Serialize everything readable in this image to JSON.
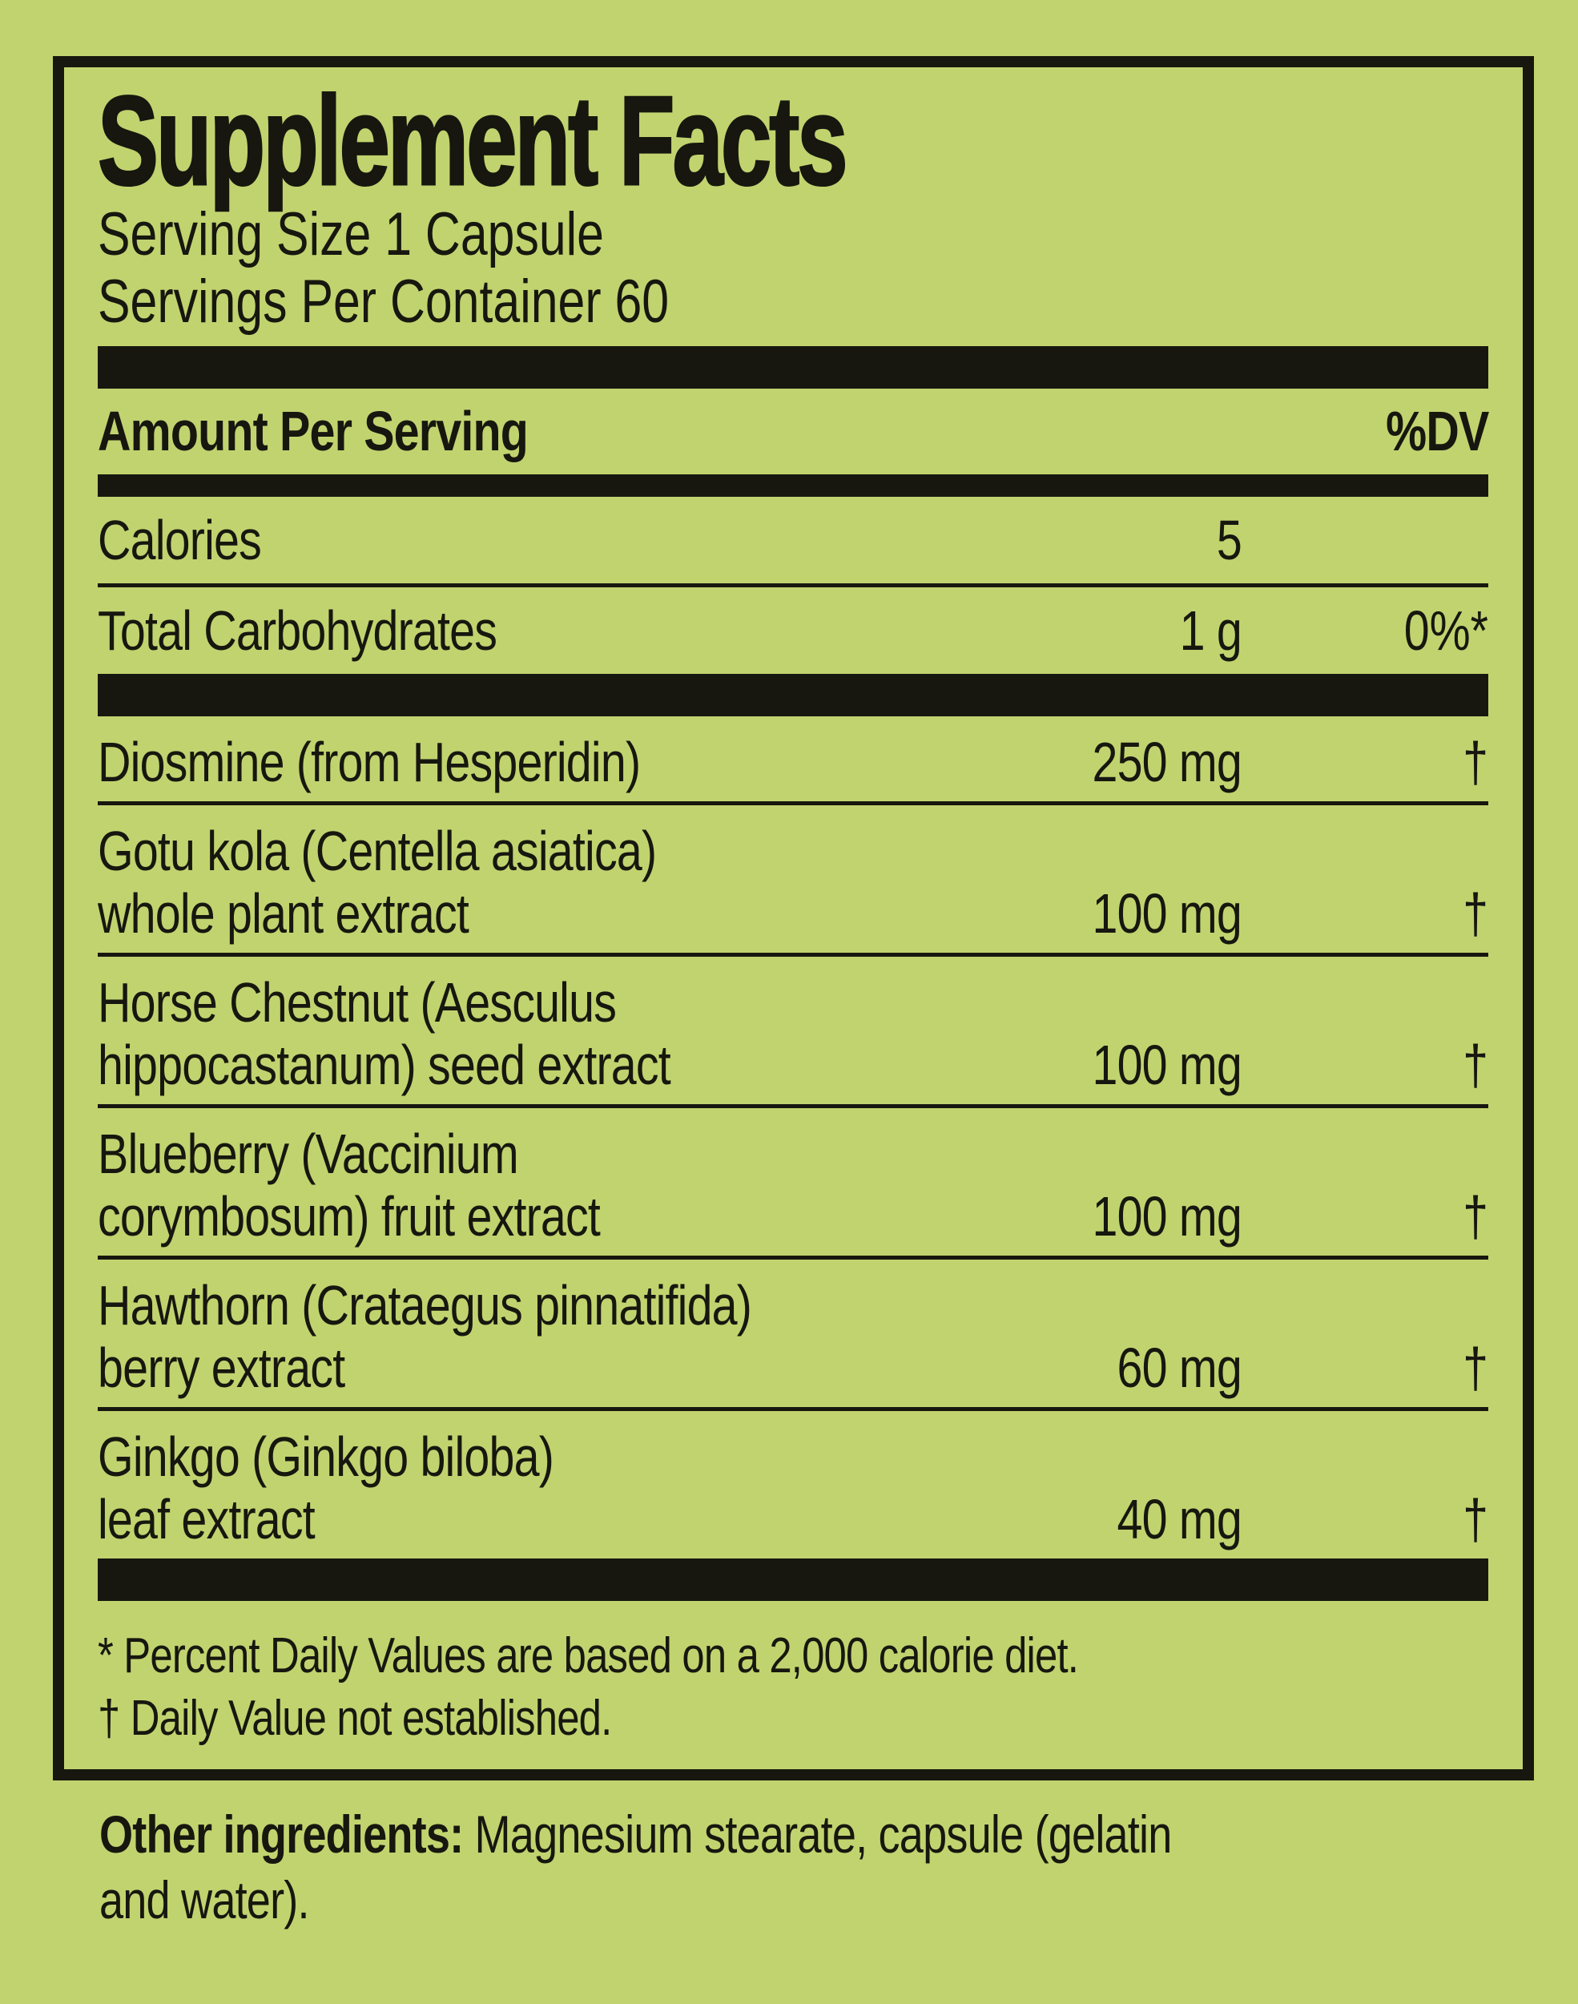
{
  "colors": {
    "background": "#c1d36f",
    "ink": "#17170f"
  },
  "panel": {
    "title": "Supplement Facts",
    "serving_size": "Serving Size 1 Capsule",
    "servings_per_container": "Servings Per Container 60",
    "header": {
      "amount_label": "Amount Per Serving",
      "dv_label": "%DV"
    },
    "rows": [
      {
        "line1": "Calories",
        "line2": "",
        "amount": "5",
        "dv": ""
      },
      {
        "line1": "Total Carbohydrates",
        "line2": "",
        "amount": "1 g",
        "dv": "0%*"
      },
      {
        "line1": "Diosmine (from Hesperidin)",
        "line2": "",
        "amount": "250 mg",
        "dv": "†"
      },
      {
        "line1": "Gotu kola (Centella asiatica)",
        "line2": "whole plant extract",
        "amount": "100 mg",
        "dv": "†"
      },
      {
        "line1": "Horse Chestnut (Aesculus",
        "line2": "hippocastanum) seed extract",
        "amount": "100 mg",
        "dv": "†"
      },
      {
        "line1": "Blueberry (Vaccinium",
        "line2": "corymbosum) fruit extract",
        "amount": "100 mg",
        "dv": "†"
      },
      {
        "line1": "Hawthorn (Crataegus pinnatifida)",
        "line2": "berry extract",
        "amount": "60 mg",
        "dv": "†"
      },
      {
        "line1": "Ginkgo (Ginkgo biloba)",
        "line2": "leaf extract",
        "amount": "40 mg",
        "dv": "†"
      }
    ],
    "footnotes": [
      "* Percent Daily Values are based on a 2,000 calorie diet.",
      "† Daily Value not established."
    ]
  },
  "other_ingredients": {
    "label": "Other ingredients:",
    "text_line1": " Magnesium stearate, capsule (gelatin",
    "text_line2": "and water)."
  }
}
